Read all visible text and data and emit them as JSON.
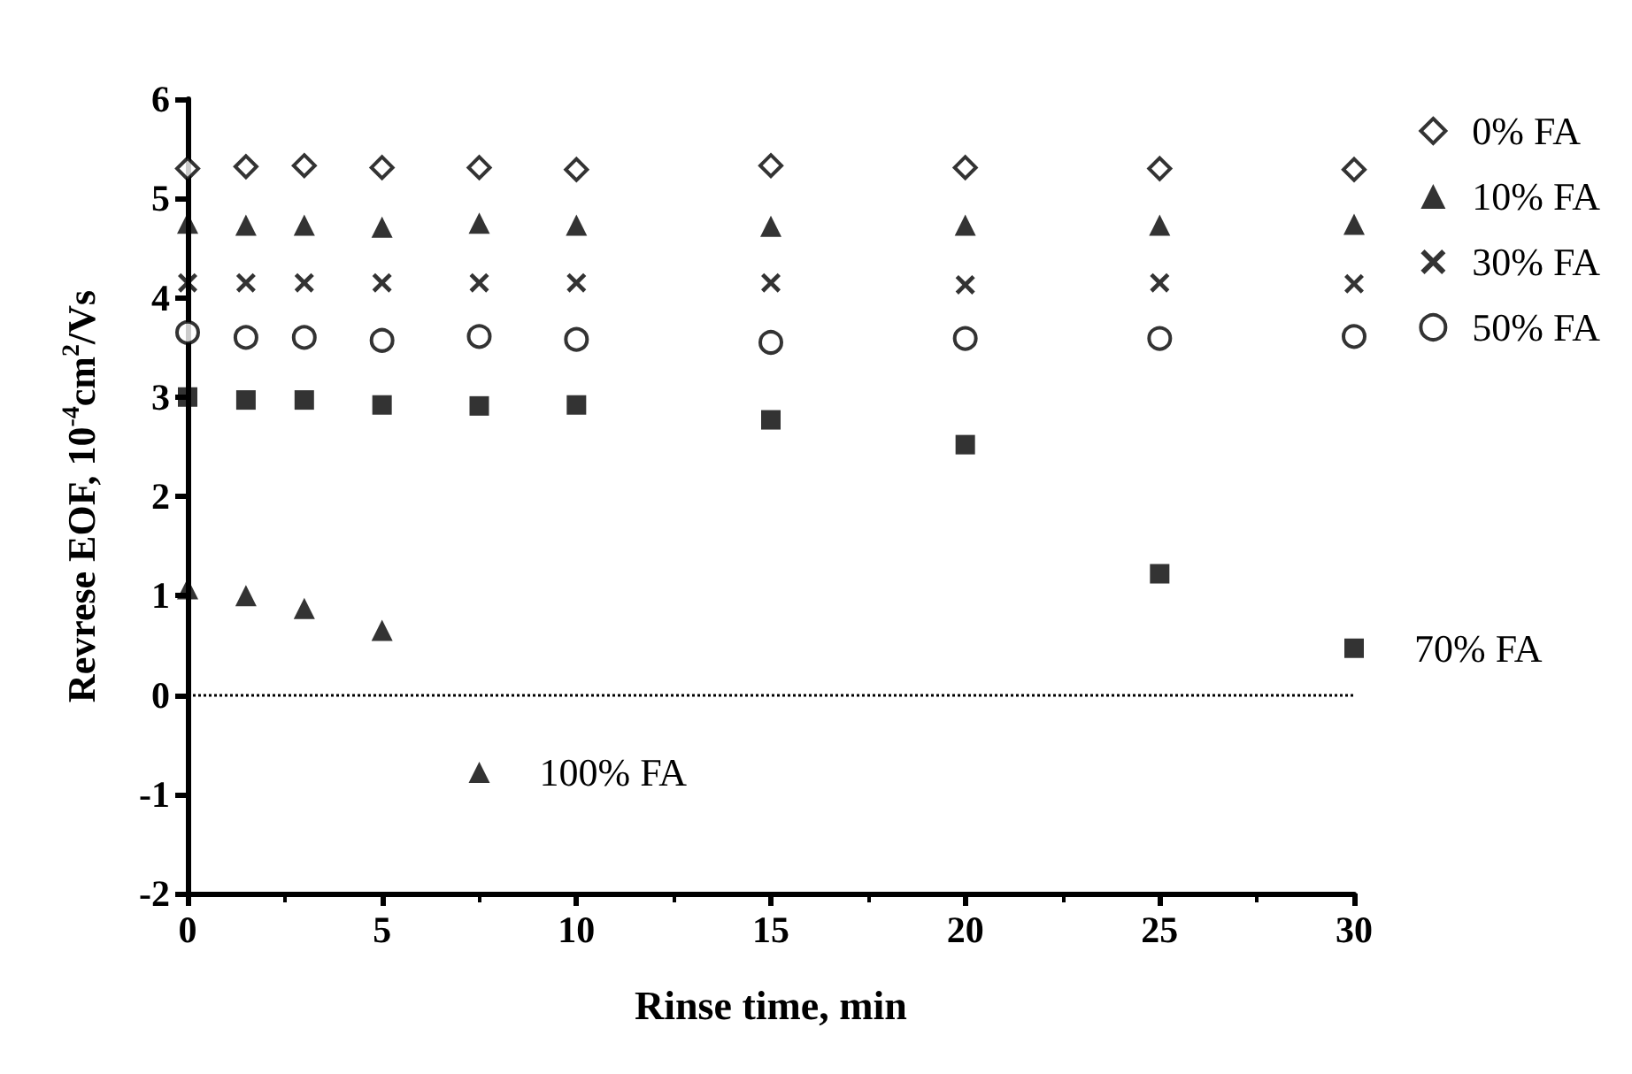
{
  "chart_data": {
    "type": "scatter",
    "xlabel": "Rinse time, min",
    "ylabel": "Revrese EOF, 10$^{-4}$cm$^{2}$/Vs",
    "xlim": [
      0,
      30
    ],
    "xticks": [
      0,
      5,
      10,
      15,
      20,
      25,
      30
    ],
    "ylim": [
      -2,
      6
    ],
    "yticks": [
      -2,
      -1,
      0,
      1,
      2,
      3,
      4,
      5,
      6
    ],
    "grid": false,
    "legend": "top right",
    "x": [
      0,
      1.5,
      3,
      5,
      7.5,
      10,
      15,
      20,
      25,
      30
    ],
    "series": [
      {
        "name": "0% FA",
        "color": "#000000",
        "marker": "diamond",
        "values": [
          5.3,
          5.32,
          5.33,
          5.31,
          5.31,
          5.29,
          5.33,
          5.31,
          5.3,
          5.29
        ]
      },
      {
        "name": "10% FA",
        "color": "#000000",
        "marker": "triangle",
        "values": [
          4.75,
          4.73,
          4.73,
          4.71,
          4.75,
          4.73,
          4.72,
          4.73,
          4.73,
          4.74
        ]
      },
      {
        "name": "30% FA",
        "color": "#000000",
        "marker": "cross",
        "values": [
          4.15,
          4.15,
          4.15,
          4.15,
          4.15,
          4.15,
          4.15,
          4.13,
          4.15,
          4.14
        ]
      },
      {
        "name": "50% FA",
        "color": "#000000",
        "marker": "circle",
        "values": [
          3.65,
          3.6,
          3.6,
          3.57,
          3.61,
          3.58,
          3.55,
          3.59,
          3.59,
          3.61
        ]
      },
      {
        "color": "#000000",
        "marker": "square",
        "values": [
          3.0,
          2.97,
          2.97,
          2.92,
          2.91,
          2.92,
          2.77,
          2.52,
          1.22,
          0.47
        ]
      },
      {
        "color": "#000000",
        "marker": "triangle",
        "x": [
          0,
          1.5,
          3,
          5,
          7.5
        ],
        "values": [
          1.07,
          1.0,
          0.87,
          0.65,
          -0.78
        ]
      }
    ],
    "ref_lines": [
      {
        "axis": "y",
        "value": 0,
        "line_style": "dotted",
        "color": "#000000"
      }
    ],
    "annotations": [
      {
        "text": "70% FA",
        "x": 30,
        "y": 0.47
      },
      {
        "text": "100% FA",
        "x": 7.5,
        "y": -0.78
      }
    ]
  }
}
